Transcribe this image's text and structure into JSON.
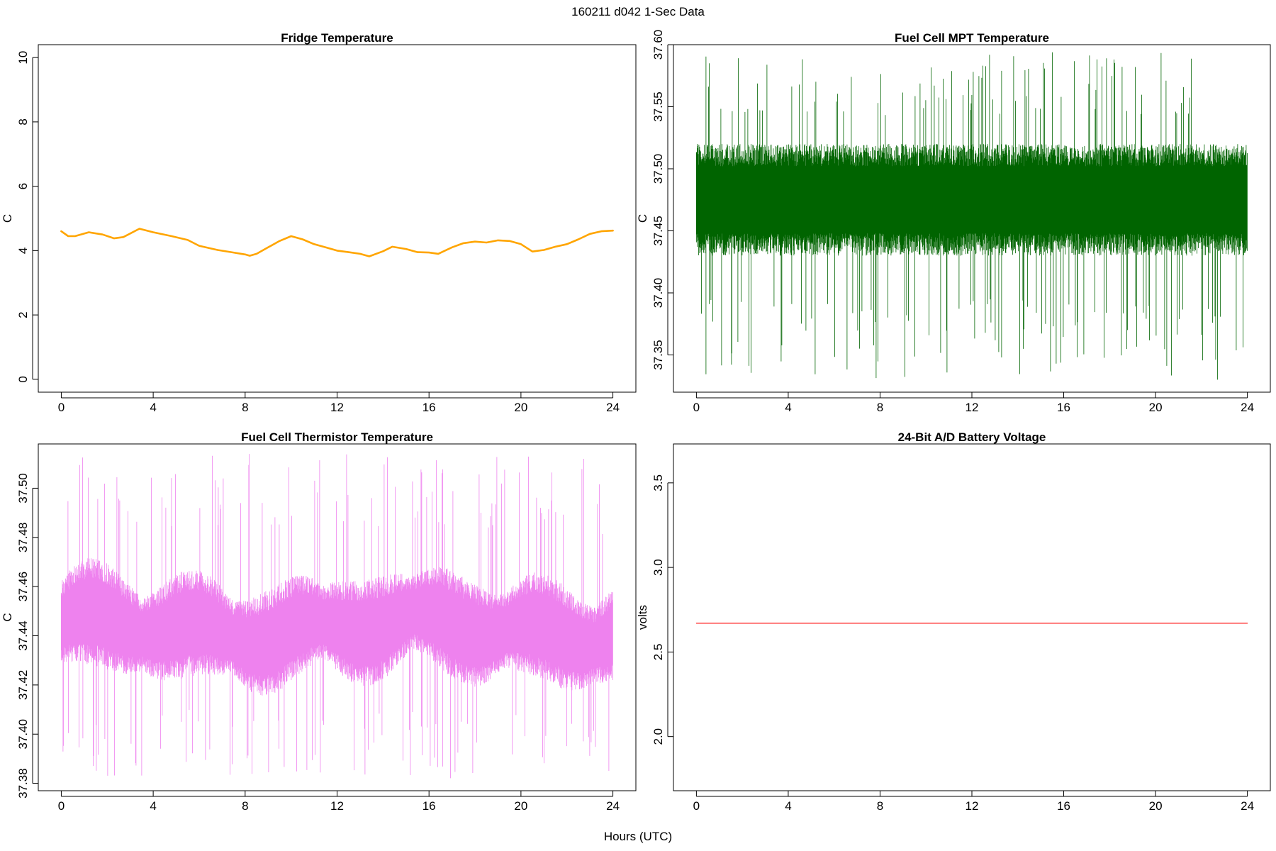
{
  "figure": {
    "title": "160211   d042   1-Sec Data",
    "xlabel": "Hours (UTC)"
  },
  "chart_data": [
    {
      "type": "line",
      "title": "Fridge Temperature",
      "xlabel": "",
      "ylabel": "C",
      "xlim": [
        -1,
        25
      ],
      "ylim": [
        -0.4,
        10.4
      ],
      "xticks": [
        0,
        4,
        8,
        12,
        16,
        20,
        24
      ],
      "xtick_labels": [
        "0",
        "4",
        "8",
        "12",
        "16",
        "20",
        "24"
      ],
      "yticks": [
        0,
        2,
        4,
        6,
        8,
        10
      ],
      "ytick_labels": [
        "0",
        "2",
        "4",
        "6",
        "8",
        "10"
      ],
      "color": "#FFA500",
      "series": [
        {
          "name": "Fridge Temperature",
          "x": [
            0,
            0.3,
            0.6,
            1.2,
            1.8,
            2.3,
            2.7,
            3.4,
            4.0,
            4.8,
            5.5,
            6.0,
            6.8,
            7.4,
            8.0,
            8.2,
            8.5,
            9.0,
            9.5,
            10.0,
            10.5,
            11.0,
            11.5,
            12.0,
            12.5,
            13.0,
            13.4,
            14.0,
            14.4,
            15.0,
            15.5,
            16.0,
            16.4,
            17.0,
            17.5,
            18.0,
            18.5,
            19.0,
            19.5,
            20.0,
            20.5,
            21.0,
            21.5,
            22.0,
            22.5,
            23.0,
            23.5,
            24.0
          ],
          "y": [
            4.6,
            4.45,
            4.45,
            4.57,
            4.5,
            4.38,
            4.42,
            4.68,
            4.57,
            4.45,
            4.33,
            4.15,
            4.02,
            3.95,
            3.88,
            3.84,
            3.9,
            4.1,
            4.3,
            4.45,
            4.35,
            4.2,
            4.1,
            4.0,
            3.95,
            3.9,
            3.82,
            3.98,
            4.12,
            4.05,
            3.95,
            3.94,
            3.9,
            4.1,
            4.23,
            4.28,
            4.25,
            4.32,
            4.3,
            4.2,
            3.97,
            4.02,
            4.12,
            4.2,
            4.35,
            4.52,
            4.6,
            4.62
          ]
        }
      ]
    },
    {
      "type": "line",
      "title": "Fuel Cell MPT Temperature",
      "xlabel": "",
      "ylabel": "C",
      "xlim": [
        -1,
        25
      ],
      "ylim": [
        37.32,
        37.6
      ],
      "xticks": [
        0,
        4,
        8,
        12,
        16,
        20,
        24
      ],
      "xtick_labels": [
        "0",
        "4",
        "8",
        "12",
        "16",
        "20",
        "24"
      ],
      "yticks": [
        37.35,
        37.4,
        37.45,
        37.5,
        37.55,
        37.6
      ],
      "ytick_labels": [
        "37.35",
        "37.40",
        "37.45",
        "37.50",
        "37.55",
        "37.60"
      ],
      "color": "#006400",
      "series": [
        {
          "name": "Fuel Cell MPT Temperature",
          "x_range": [
            0,
            24
          ],
          "band_center": 37.475,
          "band_half_width": 0.045,
          "noise_extremes": [
            37.33,
            37.595
          ]
        }
      ]
    },
    {
      "type": "line",
      "title": "Fuel Cell Thermistor Temperature",
      "xlabel": "",
      "ylabel": "C",
      "xlim": [
        -1,
        25
      ],
      "ylim": [
        37.377,
        37.518
      ],
      "xticks": [
        0,
        4,
        8,
        12,
        16,
        20,
        24
      ],
      "xtick_labels": [
        "0",
        "4",
        "8",
        "12",
        "16",
        "20",
        "24"
      ],
      "yticks": [
        37.38,
        37.4,
        37.42,
        37.44,
        37.46,
        37.48,
        37.5
      ],
      "ytick_labels": [
        "37.38",
        "37.40",
        "37.42",
        "37.44",
        "37.46",
        "37.48",
        "37.50"
      ],
      "color": "#EE82EE",
      "series": [
        {
          "name": "Fuel Cell Thermistor Temperature",
          "x_range": [
            0,
            24
          ],
          "band_center": 37.443,
          "band_half_width": 0.02,
          "noise_extremes": [
            37.382,
            37.514
          ]
        }
      ]
    },
    {
      "type": "line",
      "title": "24-Bit A/D Battery Voltage",
      "xlabel": "",
      "ylabel": "volts",
      "xlim": [
        -1,
        25
      ],
      "ylim": [
        1.68,
        3.73
      ],
      "xticks": [
        0,
        4,
        8,
        12,
        16,
        20,
        24
      ],
      "xtick_labels": [
        "0",
        "4",
        "8",
        "12",
        "16",
        "20",
        "24"
      ],
      "yticks": [
        2.0,
        2.5,
        3.0,
        3.5
      ],
      "ytick_labels": [
        "2.0",
        "2.5",
        "3.0",
        "3.5"
      ],
      "color": "#FF0000",
      "series": [
        {
          "name": "24-Bit A/D Battery Voltage",
          "x": [
            0,
            24
          ],
          "y": [
            2.67,
            2.67
          ]
        }
      ]
    }
  ]
}
